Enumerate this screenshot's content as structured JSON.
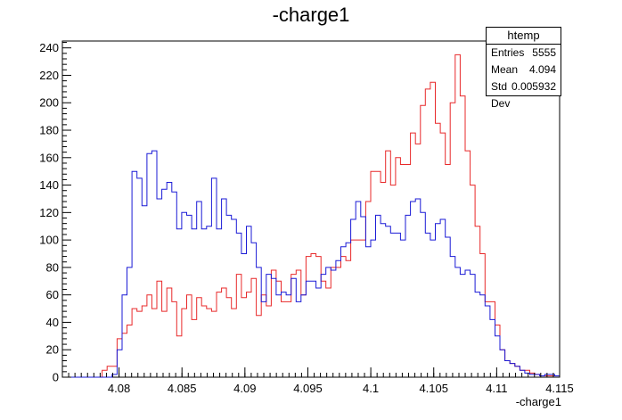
{
  "chart_data": {
    "type": "histogram-step",
    "title": "-charge1",
    "xlabel": "-charge1",
    "ylabel": "",
    "xlim": [
      4.0755,
      4.115
    ],
    "ylim": [
      0,
      245
    ],
    "x_ticks": [
      "4.08",
      "4.085",
      "4.09",
      "4.095",
      "4.1",
      "4.105",
      "4.11",
      "4.115"
    ],
    "x_tick_values": [
      4.08,
      4.085,
      4.09,
      4.095,
      4.1,
      4.105,
      4.11,
      4.115
    ],
    "y_ticks": [
      "0",
      "20",
      "40",
      "60",
      "80",
      "100",
      "120",
      "140",
      "160",
      "180",
      "200",
      "220",
      "240"
    ],
    "y_tick_values": [
      0,
      20,
      40,
      60,
      80,
      100,
      120,
      140,
      160,
      180,
      200,
      220,
      240
    ],
    "bin_start": 4.0755,
    "bin_width": 0.000395,
    "series": [
      {
        "color": "#e8292a",
        "values": [
          0,
          0,
          0,
          0,
          0,
          0,
          0,
          0,
          5,
          8,
          8,
          28,
          32,
          38,
          50,
          48,
          52,
          60,
          50,
          70,
          48,
          65,
          55,
          30,
          50,
          60,
          42,
          58,
          52,
          50,
          48,
          62,
          65,
          58,
          50,
          75,
          58,
          62,
          72,
          45,
          60,
          52,
          78,
          70,
          55,
          55,
          75,
          78,
          60,
          88,
          90,
          88,
          70,
          65,
          80,
          80,
          88,
          85,
          100,
          100,
          100,
          128,
          150,
          150,
          142,
          165,
          140,
          160,
          155,
          155,
          178,
          170,
          198,
          210,
          215,
          185,
          178,
          155,
          200,
          235,
          205,
          165,
          140,
          110,
          90,
          55,
          55,
          38,
          20,
          12,
          10,
          8,
          5,
          5,
          3,
          2,
          1,
          1,
          1,
          1,
          1,
          1,
          1,
          1,
          1,
          1,
          1,
          1,
          1,
          0,
          0,
          0,
          0,
          0,
          0,
          0,
          0
        ]
      },
      {
        "color": "#1a1ad6",
        "values": [
          0,
          0,
          0,
          0,
          0,
          0,
          0,
          0,
          0,
          0,
          2,
          20,
          60,
          80,
          150,
          145,
          125,
          163,
          165,
          130,
          137,
          142,
          135,
          108,
          120,
          118,
          108,
          128,
          108,
          110,
          145,
          108,
          130,
          118,
          115,
          105,
          90,
          110,
          98,
          80,
          55,
          75,
          72,
          60,
          62,
          60,
          72,
          55,
          60,
          70,
          70,
          65,
          75,
          80,
          78,
          85,
          95,
          98,
          115,
          128,
          117,
          95,
          100,
          118,
          112,
          110,
          105,
          105,
          100,
          118,
          128,
          130,
          120,
          105,
          100,
          112,
          115,
          102,
          88,
          80,
          75,
          78,
          75,
          62,
          60,
          52,
          42,
          30,
          20,
          12,
          10,
          8,
          5,
          3,
          2,
          2,
          1,
          2,
          2,
          1,
          1,
          2,
          2,
          1,
          1,
          2,
          1,
          1,
          1,
          0,
          0,
          0,
          0,
          0,
          0,
          0,
          0
        ]
      }
    ],
    "stats": {
      "name": "htemp",
      "rows": [
        {
          "label": "Entries",
          "value": "5555"
        },
        {
          "label": "Mean",
          "value": "4.094"
        },
        {
          "label": "Std Dev",
          "value": "0.005932"
        }
      ]
    }
  }
}
